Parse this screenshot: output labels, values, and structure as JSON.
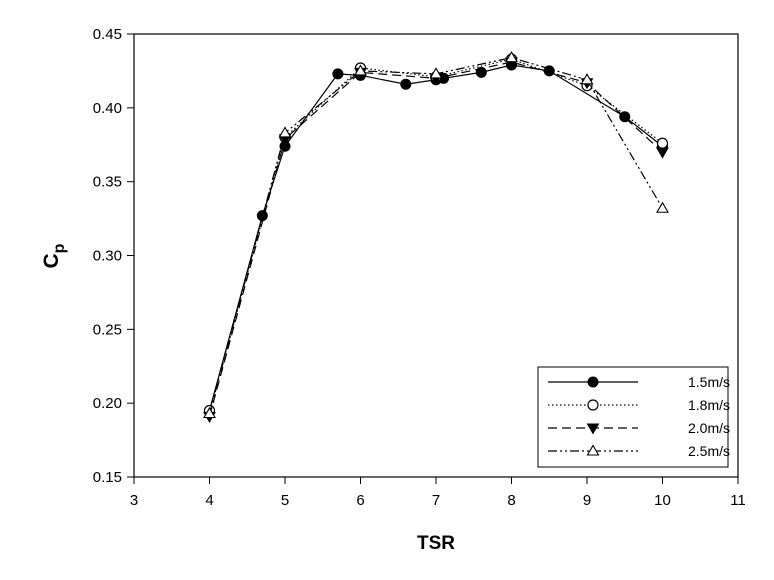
{
  "chart_data": {
    "type": "line",
    "title": "",
    "xlabel": "TSR",
    "ylabel_main": "C",
    "ylabel_sub": "p",
    "xlim": [
      3,
      11
    ],
    "ylim": [
      0.15,
      0.45
    ],
    "xticks": [
      3,
      4,
      5,
      6,
      7,
      8,
      9,
      10,
      11
    ],
    "xtick_labels": [
      "3",
      "4",
      "5",
      "6",
      "7",
      "8",
      "9",
      "10",
      "11"
    ],
    "yticks": [
      0.15,
      0.2,
      0.25,
      0.3,
      0.35,
      0.4,
      0.45
    ],
    "ytick_labels": [
      "0.15",
      "0.20",
      "0.25",
      "0.30",
      "0.35",
      "0.40",
      "0.45"
    ],
    "grid": false,
    "legend_position": "bottom-right",
    "series": [
      {
        "name": "1.5m/s",
        "marker": "filled-circle",
        "dash": "solid",
        "x": [
          4,
          4.7,
          5,
          5.7,
          6,
          6.6,
          7,
          7.1,
          7.6,
          8,
          8.5,
          9.5,
          10
        ],
        "y": [
          0.195,
          0.327,
          0.374,
          0.423,
          0.422,
          0.416,
          0.419,
          0.42,
          0.424,
          0.429,
          0.425,
          0.394,
          0.374
        ]
      },
      {
        "name": "1.8m/s",
        "marker": "open-circle",
        "dash": "dotted",
        "x": [
          4,
          5,
          6,
          7,
          8,
          9,
          10
        ],
        "y": [
          0.195,
          0.38,
          0.427,
          0.421,
          0.433,
          0.415,
          0.376
        ]
      },
      {
        "name": "2.0m/s",
        "marker": "filled-triangle-down",
        "dash": "dashed",
        "x": [
          4,
          5,
          6,
          7,
          8,
          9,
          10
        ],
        "y": [
          0.191,
          0.379,
          0.424,
          0.42,
          0.431,
          0.417,
          0.37
        ]
      },
      {
        "name": "2.5m/s",
        "marker": "open-triangle-up",
        "dash": "dash-dot-dot",
        "x": [
          4,
          5,
          6,
          7,
          8,
          9,
          10
        ],
        "y": [
          0.193,
          0.383,
          0.425,
          0.423,
          0.434,
          0.419,
          0.332
        ]
      }
    ]
  }
}
